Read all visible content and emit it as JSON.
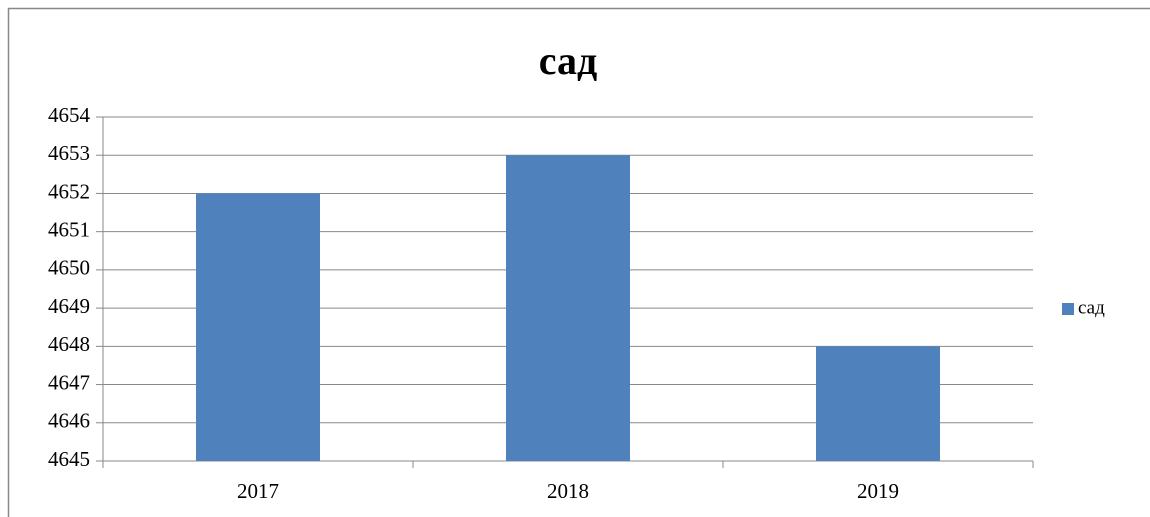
{
  "chart_data": {
    "type": "bar",
    "title": "сад",
    "categories": [
      "2017",
      "2018",
      "2019"
    ],
    "series": [
      {
        "name": "сад",
        "color": "#4f81bd",
        "values": [
          4652,
          4653,
          4648
        ]
      }
    ],
    "ylim": [
      4645,
      4654
    ],
    "yticks": [
      4645,
      4646,
      4647,
      4648,
      4649,
      4650,
      4651,
      4652,
      4653,
      4654
    ],
    "grid": true,
    "legend": "right"
  }
}
